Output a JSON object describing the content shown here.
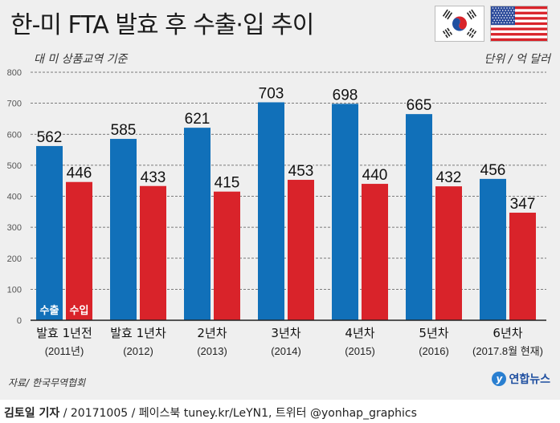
{
  "header": {
    "title": "한-미 FTA 발효 후 수출·입 추이",
    "subtitle": "대 미 상품교역 기준",
    "unit": "단위 / 억 달러"
  },
  "flags": [
    "korea-flag",
    "usa-flag"
  ],
  "chart_data": {
    "type": "bar",
    "title": "한-미 FTA 발효 후 수출·입 추이",
    "subtitle": "대 미 상품교역 기준",
    "unit": "단위 / 억 달러",
    "categories": [
      {
        "line1": "발효 1년전",
        "line2": "(2011년)"
      },
      {
        "line1": "발효 1년차",
        "line2": "(2012)"
      },
      {
        "line1": "2년차",
        "line2": "(2013)"
      },
      {
        "line1": "3년차",
        "line2": "(2014)"
      },
      {
        "line1": "4년차",
        "line2": "(2015)"
      },
      {
        "line1": "5년차",
        "line2": "(2016)"
      },
      {
        "line1": "6년차",
        "line2": "(2017.8월 현재)"
      }
    ],
    "series": [
      {
        "name": "수출",
        "color": "#1170b9",
        "values": [
          562,
          585,
          621,
          703,
          698,
          665,
          456
        ]
      },
      {
        "name": "수입",
        "color": "#d9232a",
        "values": [
          446,
          433,
          415,
          453,
          440,
          432,
          347
        ]
      }
    ],
    "yticks": [
      0,
      100,
      200,
      300,
      400,
      500,
      600,
      700,
      800
    ],
    "ylim": [
      0,
      800
    ],
    "grid": true,
    "legend": "inside-first-bars"
  },
  "footer": {
    "source": "자료/ 한국무역협회",
    "logo": "연합뉴스",
    "reporter": "김토일 기자",
    "credit_rest": " / 20171005 / 페이스북 tuney.kr/LeYN1, 트위터 @yonhap_graphics"
  }
}
